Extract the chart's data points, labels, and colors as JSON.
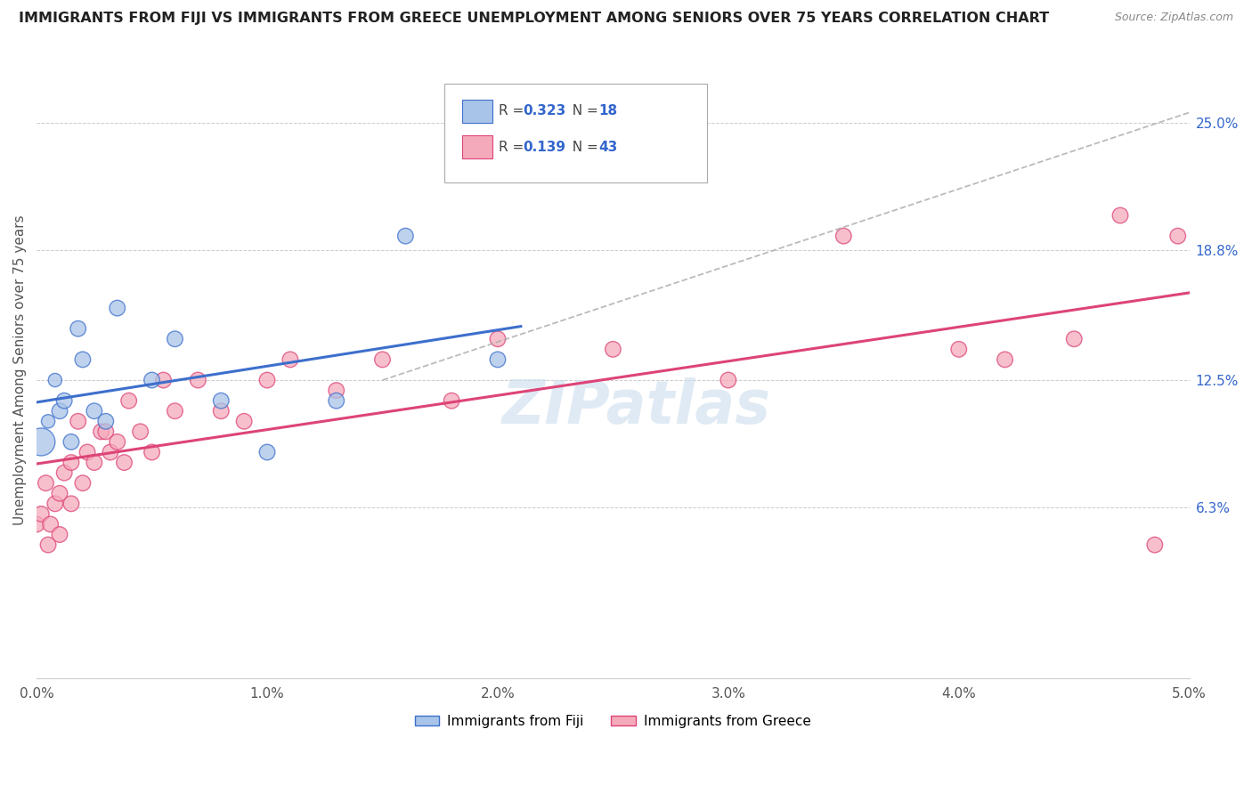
{
  "title": "IMMIGRANTS FROM FIJI VS IMMIGRANTS FROM GREECE UNEMPLOYMENT AMONG SENIORS OVER 75 YEARS CORRELATION CHART",
  "source": "Source: ZipAtlas.com",
  "ylabel": "Unemployment Among Seniors over 75 years",
  "xlim": [
    0.0,
    5.0
  ],
  "ylim": [
    -2.0,
    28.0
  ],
  "xtick_labels": [
    "0.0%",
    "1.0%",
    "2.0%",
    "3.0%",
    "4.0%",
    "5.0%"
  ],
  "xtick_values": [
    0.0,
    1.0,
    2.0,
    3.0,
    4.0,
    5.0
  ],
  "ytick_labels": [
    "6.3%",
    "12.5%",
    "18.8%",
    "25.0%"
  ],
  "ytick_values": [
    6.3,
    12.5,
    18.8,
    25.0
  ],
  "fiji_R": 0.323,
  "fiji_N": 18,
  "greece_R": 0.139,
  "greece_N": 43,
  "fiji_color": "#a8c4e8",
  "greece_color": "#f5aabb",
  "fiji_line_color": "#3d6fcc",
  "greece_line_color": "#dd4477",
  "watermark": "ZIPatlas",
  "fiji_points_x": [
    0.02,
    0.05,
    0.08,
    0.1,
    0.12,
    0.15,
    0.18,
    0.2,
    0.25,
    0.3,
    0.35,
    0.5,
    0.6,
    0.8,
    1.0,
    1.3,
    1.6,
    2.0
  ],
  "fiji_points_y": [
    9.5,
    10.5,
    12.5,
    11.0,
    11.5,
    9.5,
    15.0,
    13.5,
    11.0,
    10.5,
    16.0,
    12.5,
    14.5,
    11.5,
    9.0,
    11.5,
    19.5,
    13.5
  ],
  "fiji_points_size": [
    80,
    80,
    80,
    80,
    80,
    80,
    80,
    80,
    80,
    80,
    80,
    80,
    80,
    80,
    80,
    80,
    80,
    80
  ],
  "greece_points_x": [
    0.0,
    0.02,
    0.04,
    0.05,
    0.06,
    0.08,
    0.1,
    0.1,
    0.12,
    0.15,
    0.15,
    0.18,
    0.2,
    0.22,
    0.25,
    0.28,
    0.3,
    0.32,
    0.35,
    0.38,
    0.4,
    0.45,
    0.5,
    0.55,
    0.6,
    0.7,
    0.8,
    0.9,
    1.0,
    1.1,
    1.3,
    1.5,
    1.8,
    2.0,
    2.5,
    3.0,
    3.5,
    4.0,
    4.2,
    4.5,
    4.7,
    4.85,
    4.95
  ],
  "greece_points_y": [
    5.5,
    6.0,
    7.5,
    4.5,
    5.5,
    6.5,
    5.0,
    7.0,
    8.0,
    6.5,
    8.5,
    10.5,
    7.5,
    9.0,
    8.5,
    10.0,
    10.0,
    9.0,
    9.5,
    8.5,
    11.5,
    10.0,
    9.0,
    12.5,
    11.0,
    12.5,
    11.0,
    10.5,
    12.5,
    13.5,
    12.0,
    13.5,
    11.5,
    14.5,
    14.0,
    12.5,
    19.5,
    14.0,
    13.5,
    14.5,
    20.5,
    4.5,
    19.5
  ],
  "fiji_large_point_idx": 17,
  "fiji_large_point_size": 400,
  "greece_large_point_idx": 0
}
